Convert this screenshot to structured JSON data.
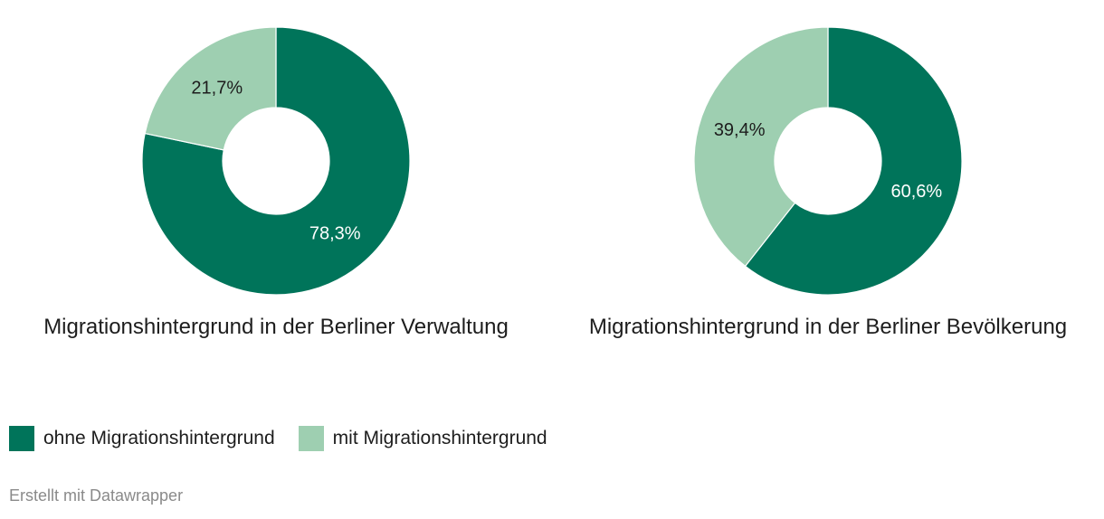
{
  "colors": {
    "ohne": "#00745a",
    "mit": "#9ecfb1"
  },
  "chart_data": [
    {
      "type": "pie",
      "variant": "donut",
      "title": "Migrationshintergrund in der Berliner Verwaltung",
      "categories": [
        "ohne Migrationshintergrund",
        "mit Migrationshintergrund"
      ],
      "values": [
        78.3,
        21.7
      ],
      "value_labels": [
        "78,3%",
        "21,7%"
      ]
    },
    {
      "type": "pie",
      "variant": "donut",
      "title": "Migrationshintergrund in der Berliner Bevölkerung",
      "categories": [
        "ohne Migrationshintergrund",
        "mit Migrationshintergrund"
      ],
      "values": [
        60.6,
        39.4
      ],
      "value_labels": [
        "60,6%",
        "39,4%"
      ]
    }
  ],
  "legend": {
    "items": [
      {
        "label": "ohne Migrationshintergrund",
        "color": "#00745a"
      },
      {
        "label": "mit Migrationshintergrund",
        "color": "#9ecfb1"
      }
    ]
  },
  "footer": {
    "credit": "Erstellt mit Datawrapper"
  }
}
